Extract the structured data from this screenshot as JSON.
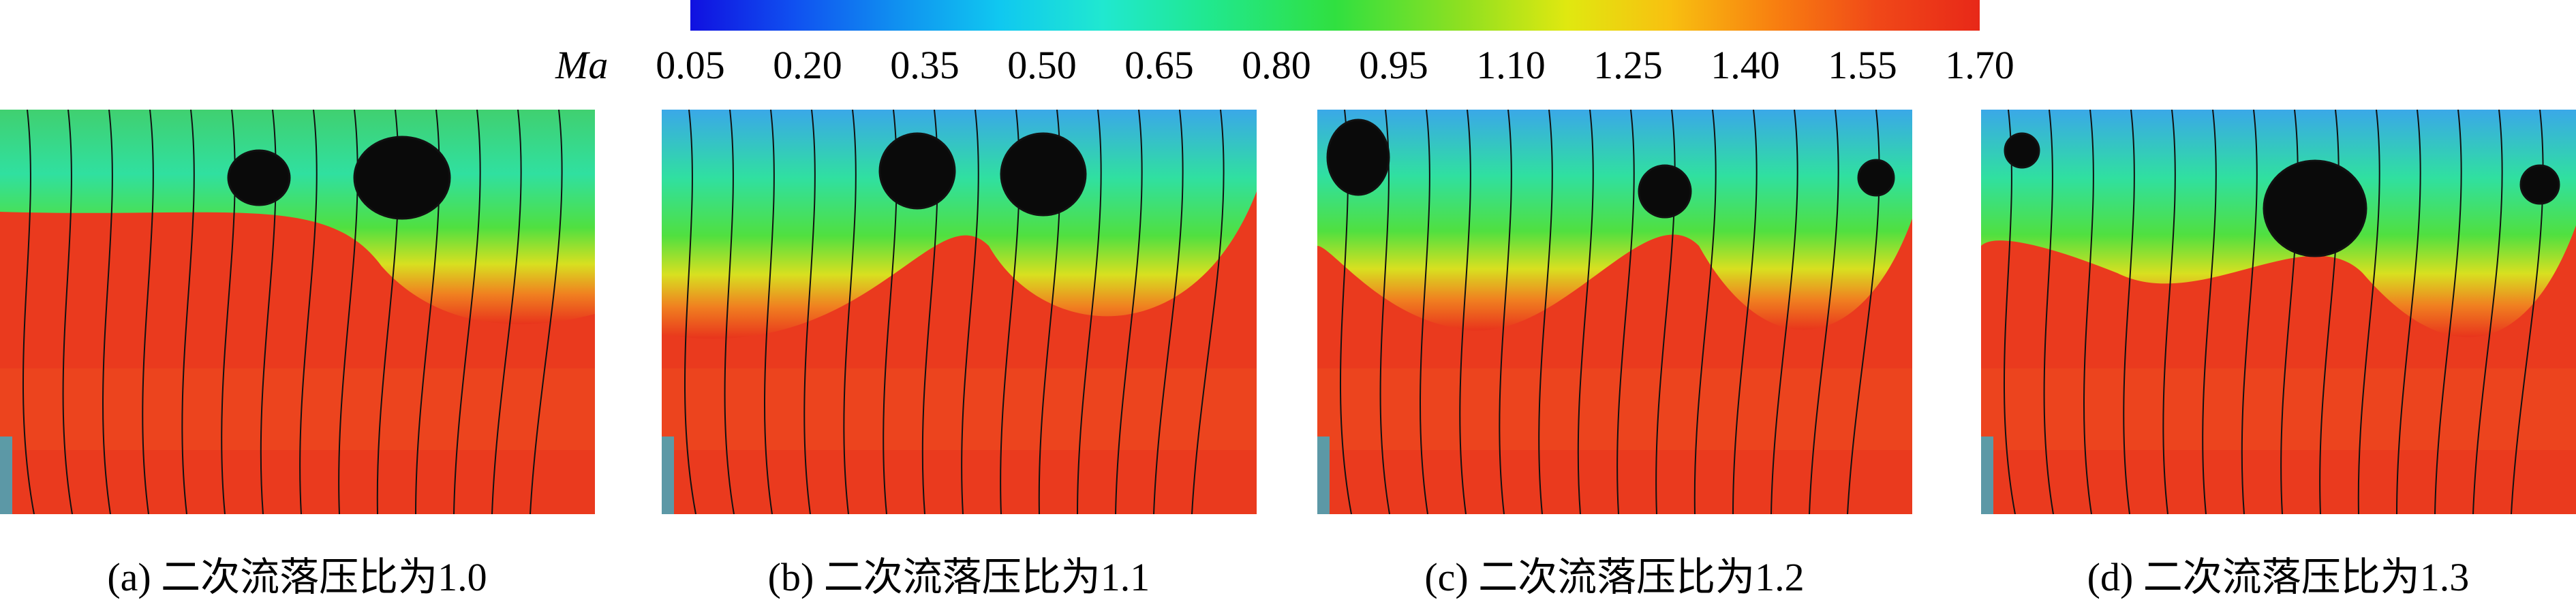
{
  "colorbar": {
    "label": "Ma",
    "ticks": [
      "0.05",
      "0.20",
      "0.35",
      "0.50",
      "0.65",
      "0.80",
      "0.95",
      "1.10",
      "1.25",
      "1.40",
      "1.55",
      "1.70"
    ]
  },
  "panels": [
    {
      "caption": "(a) 二次流落压比为1.0"
    },
    {
      "caption": "(b) 二次流落压比为1.1"
    },
    {
      "caption": "(c) 二次流落压比为1.2"
    },
    {
      "caption": "(d) 二次流落压比为1.3"
    }
  ]
}
